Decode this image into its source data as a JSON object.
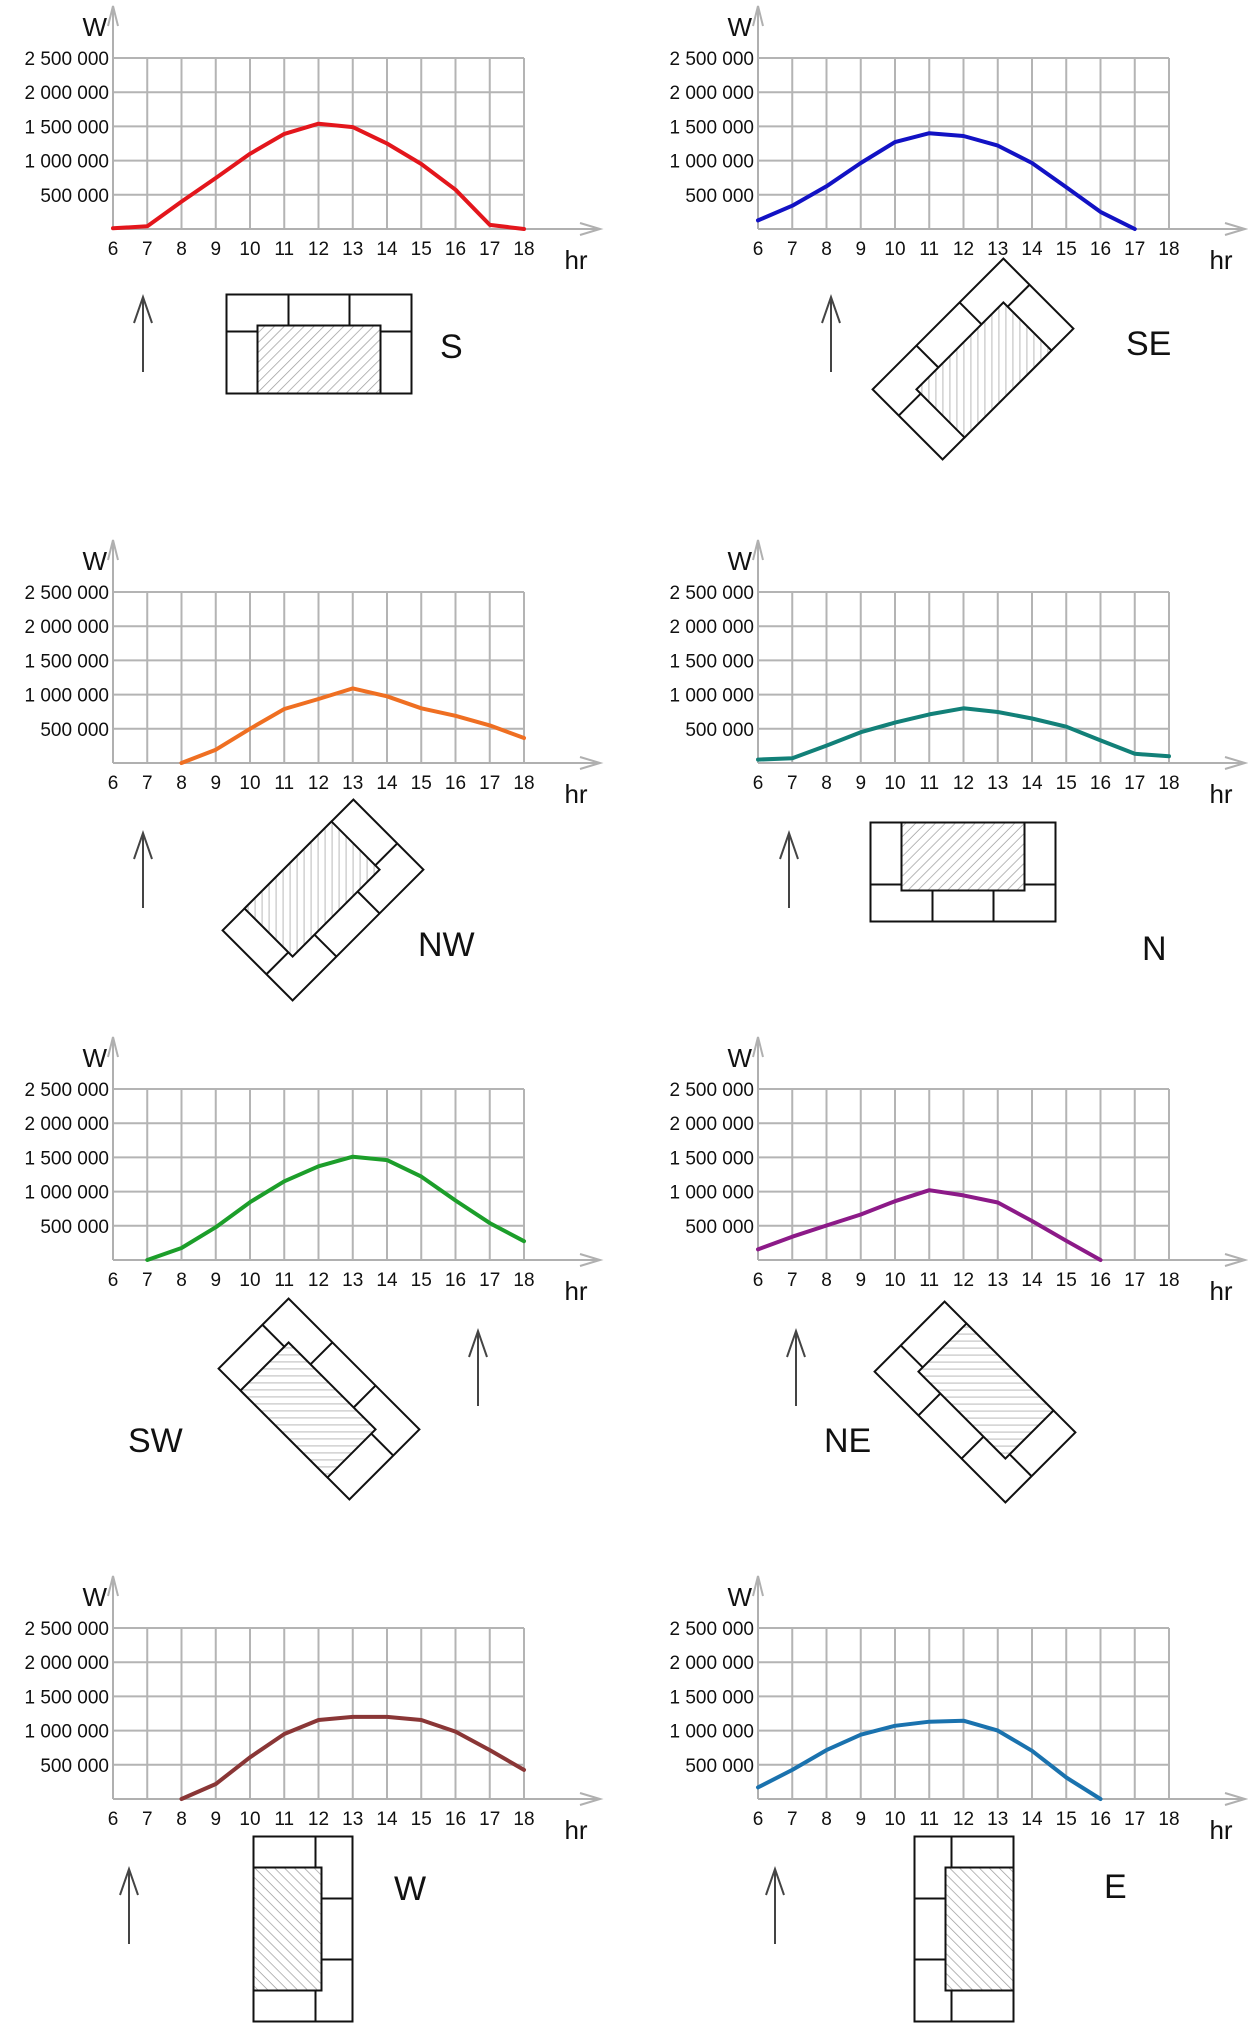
{
  "chart_data": [
    {
      "type": "line",
      "orientation": "S",
      "title": "S",
      "xlabel": "hr",
      "ylabel": "W",
      "x": [
        6,
        7,
        8,
        9,
        10,
        11,
        12,
        13,
        14,
        15,
        16,
        17,
        18
      ],
      "yticks": [
        "500 000",
        "1 000 000",
        "1 500 000",
        "2 000 000",
        "2 500 000"
      ],
      "ylim": [
        0,
        2500000
      ],
      "grid": true,
      "color": "#e3161c",
      "series": [
        {
          "name": "S",
          "values": [
            10000,
            40000,
            400000,
            745000,
            1100000,
            1390000,
            1540000,
            1490000,
            1250000,
            950000,
            575000,
            60000,
            0
          ]
        }
      ]
    },
    {
      "type": "line",
      "orientation": "SE",
      "title": "SE",
      "xlabel": "hr",
      "ylabel": "W",
      "x": [
        6,
        7,
        8,
        9,
        10,
        11,
        12,
        13,
        14,
        15,
        16,
        17
      ],
      "yticks": [
        "500 000",
        "1 000 000",
        "1 500 000",
        "2 000 000",
        "2 500 000"
      ],
      "ylim": [
        0,
        2500000
      ],
      "grid": true,
      "color": "#1212c4",
      "series": [
        {
          "name": "SE",
          "values": [
            125000,
            340000,
            625000,
            965000,
            1270000,
            1400000,
            1360000,
            1220000,
            965000,
            610000,
            250000,
            0
          ]
        }
      ]
    },
    {
      "type": "line",
      "orientation": "NW",
      "title": "NW",
      "xlabel": "hr",
      "ylabel": "W",
      "x": [
        8,
        9,
        10,
        11,
        12,
        13,
        14,
        15,
        16,
        17,
        18
      ],
      "yticks": [
        "500 000",
        "1 000 000",
        "1 500 000",
        "2 000 000",
        "2 500 000"
      ],
      "ylim": [
        0,
        2500000
      ],
      "grid": true,
      "color": "#ef6f22",
      "series": [
        {
          "name": "NW",
          "values": [
            0,
            195000,
            500000,
            790000,
            935000,
            1090000,
            975000,
            800000,
            690000,
            550000,
            365000
          ]
        }
      ]
    },
    {
      "type": "line",
      "orientation": "N",
      "title": "N",
      "xlabel": "hr",
      "ylabel": "W",
      "x": [
        6,
        7,
        8,
        9,
        10,
        11,
        12,
        13,
        14,
        15,
        16,
        17,
        18
      ],
      "yticks": [
        "500 000",
        "1 000 000",
        "1 500 000",
        "2 000 000",
        "2 500 000"
      ],
      "ylim": [
        0,
        2500000
      ],
      "grid": true,
      "color": "#128078",
      "series": [
        {
          "name": "N",
          "values": [
            50000,
            70000,
            255000,
            450000,
            590000,
            710000,
            800000,
            745000,
            650000,
            530000,
            330000,
            135000,
            100000
          ]
        }
      ]
    },
    {
      "type": "line",
      "orientation": "SW",
      "title": "SW",
      "xlabel": "hr",
      "ylabel": "W",
      "x": [
        7,
        8,
        9,
        10,
        11,
        12,
        13,
        14,
        15,
        16,
        17,
        18
      ],
      "yticks": [
        "500 000",
        "1 000 000",
        "1 500 000",
        "2 000 000",
        "2 500 000"
      ],
      "ylim": [
        0,
        2500000
      ],
      "grid": true,
      "color": "#1c9e2a",
      "series": [
        {
          "name": "SW",
          "values": [
            0,
            175000,
            480000,
            845000,
            1150000,
            1370000,
            1510000,
            1460000,
            1220000,
            870000,
            540000,
            275000
          ]
        }
      ]
    },
    {
      "type": "line",
      "orientation": "NE",
      "title": "NE",
      "xlabel": "hr",
      "ylabel": "W",
      "x": [
        6,
        7,
        8,
        9,
        10,
        11,
        12,
        13,
        14,
        15,
        16
      ],
      "yticks": [
        "500 000",
        "1 000 000",
        "1 500 000",
        "2 000 000",
        "2 500 000"
      ],
      "ylim": [
        0,
        2500000
      ],
      "grid": true,
      "color": "#8c1a88",
      "series": [
        {
          "name": "NE",
          "values": [
            155000,
            340000,
            505000,
            665000,
            860000,
            1020000,
            945000,
            840000,
            570000,
            280000,
            0
          ]
        }
      ]
    },
    {
      "type": "line",
      "orientation": "W",
      "title": "W",
      "xlabel": "hr",
      "ylabel": "W",
      "x": [
        8,
        9,
        10,
        11,
        12,
        13,
        14,
        15,
        16,
        17,
        18
      ],
      "yticks": [
        "500 000",
        "1 000 000",
        "1 500 000",
        "2 000 000",
        "2 500 000"
      ],
      "ylim": [
        0,
        2500000
      ],
      "grid": true,
      "color": "#8a3636",
      "series": [
        {
          "name": "W",
          "values": [
            0,
            220000,
            610000,
            950000,
            1155000,
            1200000,
            1200000,
            1155000,
            985000,
            715000,
            425000
          ]
        }
      ]
    },
    {
      "type": "line",
      "orientation": "E",
      "title": "E",
      "xlabel": "hr",
      "ylabel": "W",
      "x": [
        6,
        7,
        8,
        9,
        10,
        11,
        12,
        13,
        14,
        15,
        16
      ],
      "yticks": [
        "500 000",
        "1 000 000",
        "1 500 000",
        "2 000 000",
        "2 500 000"
      ],
      "ylim": [
        0,
        2500000
      ],
      "grid": true,
      "color": "#1a72ae",
      "series": [
        {
          "name": "E",
          "values": [
            170000,
            425000,
            715000,
            940000,
            1070000,
            1130000,
            1145000,
            1000000,
            705000,
            315000,
            0
          ]
        }
      ]
    }
  ],
  "axis": {
    "x_ticks": [
      "6",
      "7",
      "8",
      "9",
      "10",
      "11",
      "12",
      "13",
      "14",
      "15",
      "16",
      "17",
      "18"
    ],
    "x_unit": "hr",
    "y_unit": "W"
  },
  "panels": [
    {
      "orientation": "S",
      "label": "S"
    },
    {
      "orientation": "SE",
      "label": "SE"
    },
    {
      "orientation": "NW",
      "label": "NW"
    },
    {
      "orientation": "N",
      "label": "N"
    },
    {
      "orientation": "SW",
      "label": "SW"
    },
    {
      "orientation": "NE",
      "label": "NE"
    },
    {
      "orientation": "W",
      "label": "W"
    },
    {
      "orientation": "E",
      "label": "E"
    }
  ]
}
